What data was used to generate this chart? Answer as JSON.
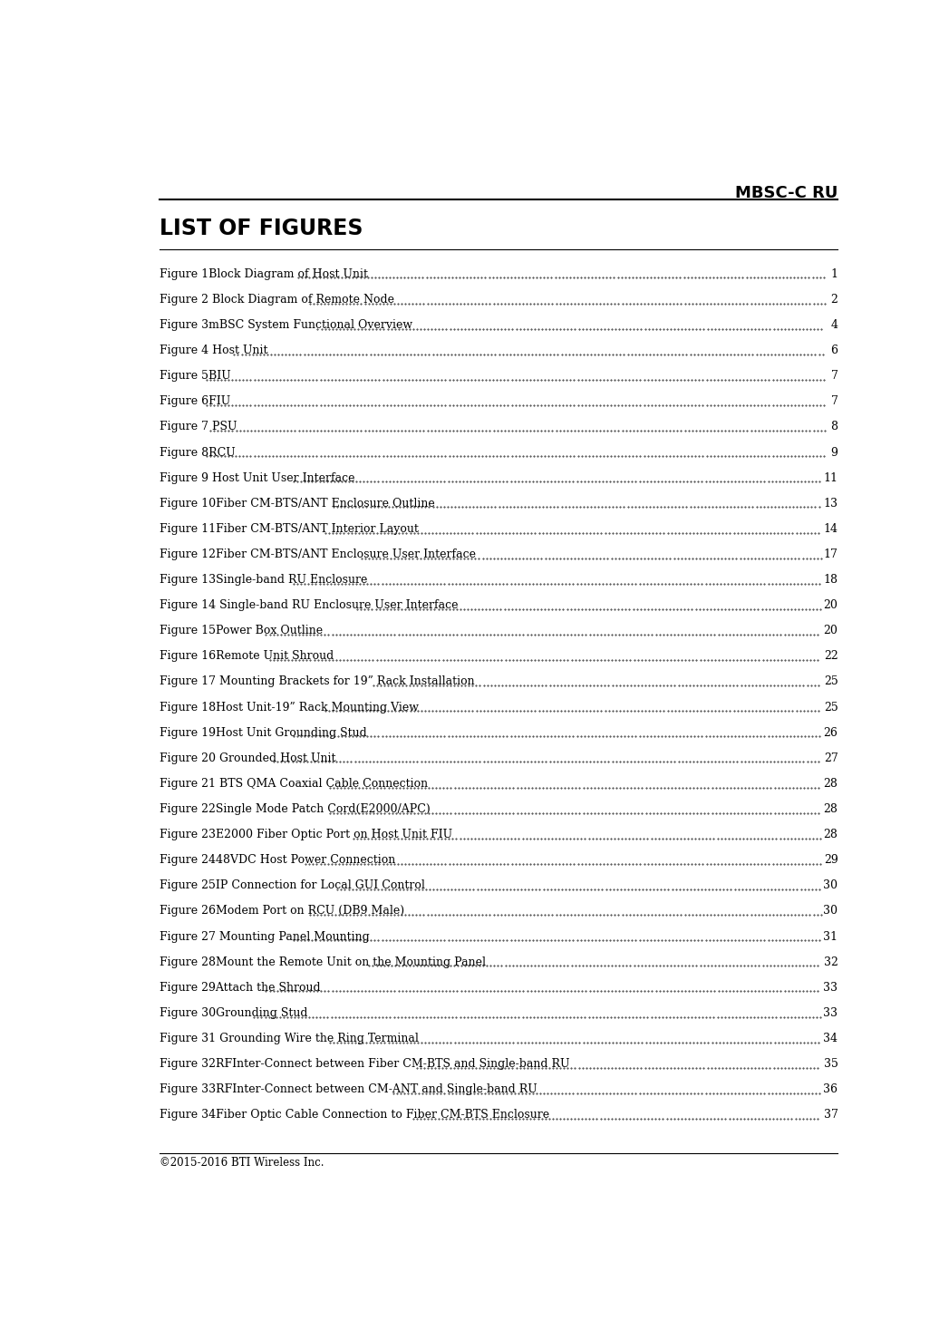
{
  "header_title": "MBSC-C RU",
  "section_title": "LIST OF FIGURES",
  "footer_text": "©2015-2016 BTI Wireless Inc.",
  "background_color": "#ffffff",
  "text_color": "#000000",
  "figures": [
    {
      "label": "Figure 1",
      "rest": "Block Diagram of Host Unit",
      "page": "1"
    },
    {
      "label": "Figure 2 ",
      "rest": "Block Diagram of Remote Node",
      "page": "2"
    },
    {
      "label": "Figure 3",
      "rest": "mBSC System Functional Overview",
      "page": "4"
    },
    {
      "label": "Figure 4 ",
      "rest": "Host Unit",
      "page": "6"
    },
    {
      "label": "Figure 5",
      "rest": "BIU",
      "page": "7"
    },
    {
      "label": "Figure 6",
      "rest": "FIU",
      "page": "7"
    },
    {
      "label": "Figure 7 ",
      "rest": "PSU",
      "page": "8"
    },
    {
      "label": "Figure 8",
      "rest": "RCU",
      "page": "9"
    },
    {
      "label": "Figure 9 ",
      "rest": "Host Unit User Interface",
      "page": "11"
    },
    {
      "label": "Figure 10",
      "rest": "Fiber CM-BTS/ANT Enclosure Outline",
      "page": "13"
    },
    {
      "label": "Figure 11",
      "rest": "Fiber CM-BTS/ANT Interior Layout",
      "page": "14"
    },
    {
      "label": "Figure 12",
      "rest": "Fiber CM-BTS/ANT Enclosure User Interface",
      "page": "17"
    },
    {
      "label": "Figure 13",
      "rest": "Single-band RU Enclosure",
      "page": "18"
    },
    {
      "label": "Figure 14 ",
      "rest": "Single-band RU Enclosure User Interface",
      "page": "20"
    },
    {
      "label": "Figure 15",
      "rest": "Power Box Outline",
      "page": "20"
    },
    {
      "label": "Figure 16",
      "rest": "Remote Unit Shroud",
      "page": "22"
    },
    {
      "label": "Figure 17 ",
      "rest": "Mounting Brackets for 19” Rack Installation",
      "page": "25"
    },
    {
      "label": "Figure 18",
      "rest": "Host Unit-19” Rack Mounting View",
      "page": "25"
    },
    {
      "label": "Figure 19",
      "rest": "Host Unit Grounding Stud",
      "page": "26"
    },
    {
      "label": "Figure 20 ",
      "rest": "Grounded Host Unit",
      "page": "27"
    },
    {
      "label": "Figure 21 ",
      "rest": "BTS QMA Coaxial Cable Connection",
      "page": "28"
    },
    {
      "label": "Figure 22",
      "rest": "Single Mode Patch Cord(E2000/APC)",
      "page": "28"
    },
    {
      "label": "Figure 23",
      "rest": "E2000 Fiber Optic Port on Host Unit FIU",
      "page": "28"
    },
    {
      "label": "Figure 24",
      "rest": "48VDC Host Power Connection",
      "page": "29"
    },
    {
      "label": "Figure 25",
      "rest": "IP Connection for Local GUI Control",
      "page": "30"
    },
    {
      "label": "Figure 26",
      "rest": "Modem Port on RCU (DB9 Male)",
      "page": "30"
    },
    {
      "label": "Figure 27 ",
      "rest": "Mounting Panel Mounting",
      "page": "31"
    },
    {
      "label": "Figure 28",
      "rest": "Mount the Remote Unit on the Mounting Panel",
      "page": "32"
    },
    {
      "label": "Figure 29",
      "rest": "Attach the Shroud",
      "page": "33"
    },
    {
      "label": "Figure 30",
      "rest": "Grounding Stud",
      "page": "33"
    },
    {
      "label": "Figure 31 ",
      "rest": "Grounding Wire the Ring Terminal",
      "page": "34"
    },
    {
      "label": "Figure 32",
      "rest": "RFInter-Connect between Fiber CM-BTS and Single-band RU",
      "page": "35"
    },
    {
      "label": "Figure 33",
      "rest": "RFInter-Connect between CM-ANT and Single-band RU",
      "page": "36"
    },
    {
      "label": "Figure 34",
      "rest": "Fiber Optic Cable Connection to Fiber CM-BTS Enclosure",
      "page": "37"
    }
  ]
}
